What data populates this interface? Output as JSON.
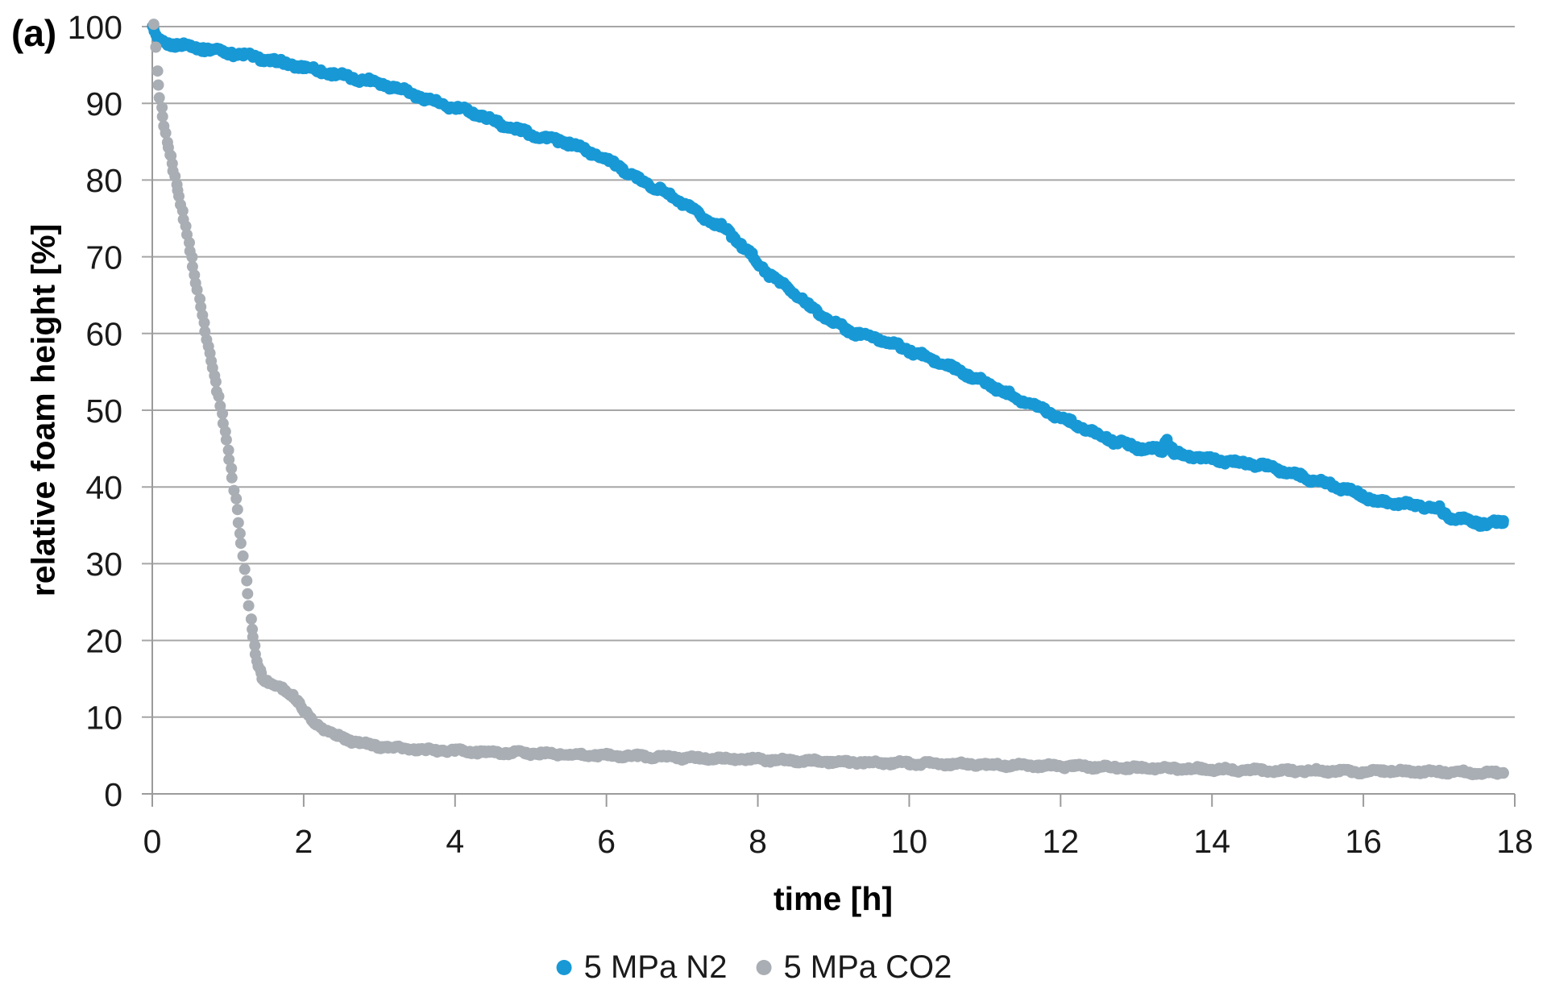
{
  "panel_label": "(a)",
  "chart_data": {
    "type": "scatter",
    "title": "",
    "xlabel": "time [h]",
    "ylabel": "relative foam height [%]",
    "xlim": [
      0,
      18
    ],
    "ylim": [
      0,
      100
    ],
    "x_ticks": [
      0,
      2,
      4,
      6,
      8,
      10,
      12,
      14,
      16,
      18
    ],
    "y_ticks": [
      0,
      10,
      20,
      30,
      40,
      50,
      60,
      70,
      80,
      90,
      100
    ],
    "grid": "horizontal",
    "legend_position": "bottom-center",
    "colors": {
      "n2": "#1899D6",
      "co2": "#A9AEB4",
      "gridline": "#A6A6A6",
      "axis": "#9B9B9B",
      "text": "#1a1a1a"
    },
    "marker_radius_px": 7,
    "series": [
      {
        "name": "5 MPa N2",
        "color_key": "n2",
        "points": [
          [
            0.0,
            100.2
          ],
          [
            0.03,
            99.2
          ],
          [
            0.06,
            98.3
          ],
          [
            0.12,
            97.9
          ],
          [
            0.3,
            97.7
          ],
          [
            0.6,
            97.3
          ],
          [
            0.9,
            96.8
          ],
          [
            1.2,
            96.3
          ],
          [
            1.5,
            95.7
          ],
          [
            1.8,
            95.1
          ],
          [
            2.1,
            94.5
          ],
          [
            2.4,
            93.8
          ],
          [
            2.7,
            93.2
          ],
          [
            3.0,
            92.7
          ],
          [
            3.3,
            91.8
          ],
          [
            3.6,
            90.6
          ],
          [
            3.8,
            89.9
          ],
          [
            4.0,
            89.4
          ],
          [
            4.3,
            88.6
          ],
          [
            4.6,
            87.3
          ],
          [
            4.9,
            86.3
          ],
          [
            5.2,
            85.5
          ],
          [
            5.5,
            84.8
          ],
          [
            5.8,
            83.6
          ],
          [
            6.1,
            82.2
          ],
          [
            6.4,
            80.2
          ],
          [
            6.7,
            78.8
          ],
          [
            7.0,
            77.0
          ],
          [
            7.3,
            75.0
          ],
          [
            7.6,
            73.5
          ],
          [
            7.9,
            70.3
          ],
          [
            8.1,
            68.1
          ],
          [
            8.4,
            65.9
          ],
          [
            8.7,
            63.4
          ],
          [
            9.0,
            61.4
          ],
          [
            9.3,
            60.0
          ],
          [
            9.6,
            59.3
          ],
          [
            9.9,
            58.2
          ],
          [
            10.2,
            57.0
          ],
          [
            10.5,
            55.8
          ],
          [
            10.8,
            54.5
          ],
          [
            11.1,
            53.1
          ],
          [
            11.4,
            51.7
          ],
          [
            11.8,
            50.0
          ],
          [
            12.1,
            48.6
          ],
          [
            12.4,
            47.2
          ],
          [
            12.7,
            46.0
          ],
          [
            13.0,
            45.2
          ],
          [
            13.2,
            44.9
          ],
          [
            13.35,
            44.8
          ],
          [
            13.4,
            46.2
          ],
          [
            13.43,
            45.8
          ],
          [
            13.5,
            44.4
          ],
          [
            13.7,
            44.0
          ],
          [
            14.0,
            43.6
          ],
          [
            14.3,
            43.2
          ],
          [
            14.6,
            42.9
          ],
          [
            14.9,
            42.2
          ],
          [
            15.2,
            41.3
          ],
          [
            15.5,
            40.5
          ],
          [
            15.8,
            39.6
          ],
          [
            16.0,
            38.8
          ],
          [
            16.2,
            38.1
          ],
          [
            16.5,
            37.8
          ],
          [
            16.8,
            37.5
          ],
          [
            17.0,
            37.1
          ],
          [
            17.12,
            36.2
          ],
          [
            17.3,
            35.8
          ],
          [
            17.5,
            35.4
          ],
          [
            17.65,
            35.1
          ],
          [
            17.75,
            35.3
          ],
          [
            17.85,
            35.6
          ]
        ]
      },
      {
        "name": "5 MPa CO2",
        "color_key": "co2",
        "points": [
          [
            0.02,
            100.2
          ],
          [
            0.06,
            94.0
          ],
          [
            0.1,
            90.5
          ],
          [
            0.16,
            87.0
          ],
          [
            0.24,
            83.3
          ],
          [
            0.32,
            79.6
          ],
          [
            0.42,
            74.8
          ],
          [
            0.52,
            69.8
          ],
          [
            0.62,
            64.6
          ],
          [
            0.72,
            59.4
          ],
          [
            0.82,
            54.4
          ],
          [
            0.92,
            49.6
          ],
          [
            1.02,
            43.8
          ],
          [
            1.1,
            38.5
          ],
          [
            1.18,
            32.5
          ],
          [
            1.26,
            26.0
          ],
          [
            1.33,
            20.5
          ],
          [
            1.4,
            16.8
          ],
          [
            1.47,
            15.0
          ],
          [
            1.55,
            14.3
          ],
          [
            1.65,
            14.0
          ],
          [
            1.75,
            13.5
          ],
          [
            1.85,
            13.0
          ],
          [
            1.93,
            12.0
          ],
          [
            2.03,
            10.4
          ],
          [
            2.13,
            9.5
          ],
          [
            2.25,
            8.6
          ],
          [
            2.4,
            7.7
          ],
          [
            2.6,
            7.0
          ],
          [
            2.8,
            6.5
          ],
          [
            3.0,
            6.2
          ],
          [
            3.3,
            5.9
          ],
          [
            3.6,
            5.7
          ],
          [
            4.0,
            5.6
          ],
          [
            4.5,
            5.4
          ],
          [
            5.0,
            5.3
          ],
          [
            5.5,
            5.1
          ],
          [
            6.0,
            5.0
          ],
          [
            6.5,
            4.9
          ],
          [
            7.0,
            4.7
          ],
          [
            7.5,
            4.6
          ],
          [
            8.0,
            4.5
          ],
          [
            8.5,
            4.3
          ],
          [
            9.0,
            4.2
          ],
          [
            9.5,
            4.1
          ],
          [
            10.0,
            4.0
          ],
          [
            10.5,
            3.9
          ],
          [
            11.0,
            3.8
          ],
          [
            11.5,
            3.7
          ],
          [
            12.0,
            3.6
          ],
          [
            12.5,
            3.5
          ],
          [
            13.0,
            3.4
          ],
          [
            13.5,
            3.3
          ],
          [
            14.0,
            3.2
          ],
          [
            14.5,
            3.1
          ],
          [
            15.0,
            3.0
          ],
          [
            15.5,
            3.0
          ],
          [
            16.0,
            2.9
          ],
          [
            16.3,
            3.0
          ],
          [
            16.6,
            2.9
          ],
          [
            17.0,
            2.9
          ],
          [
            17.4,
            2.8
          ],
          [
            17.85,
            2.7
          ]
        ]
      }
    ]
  }
}
